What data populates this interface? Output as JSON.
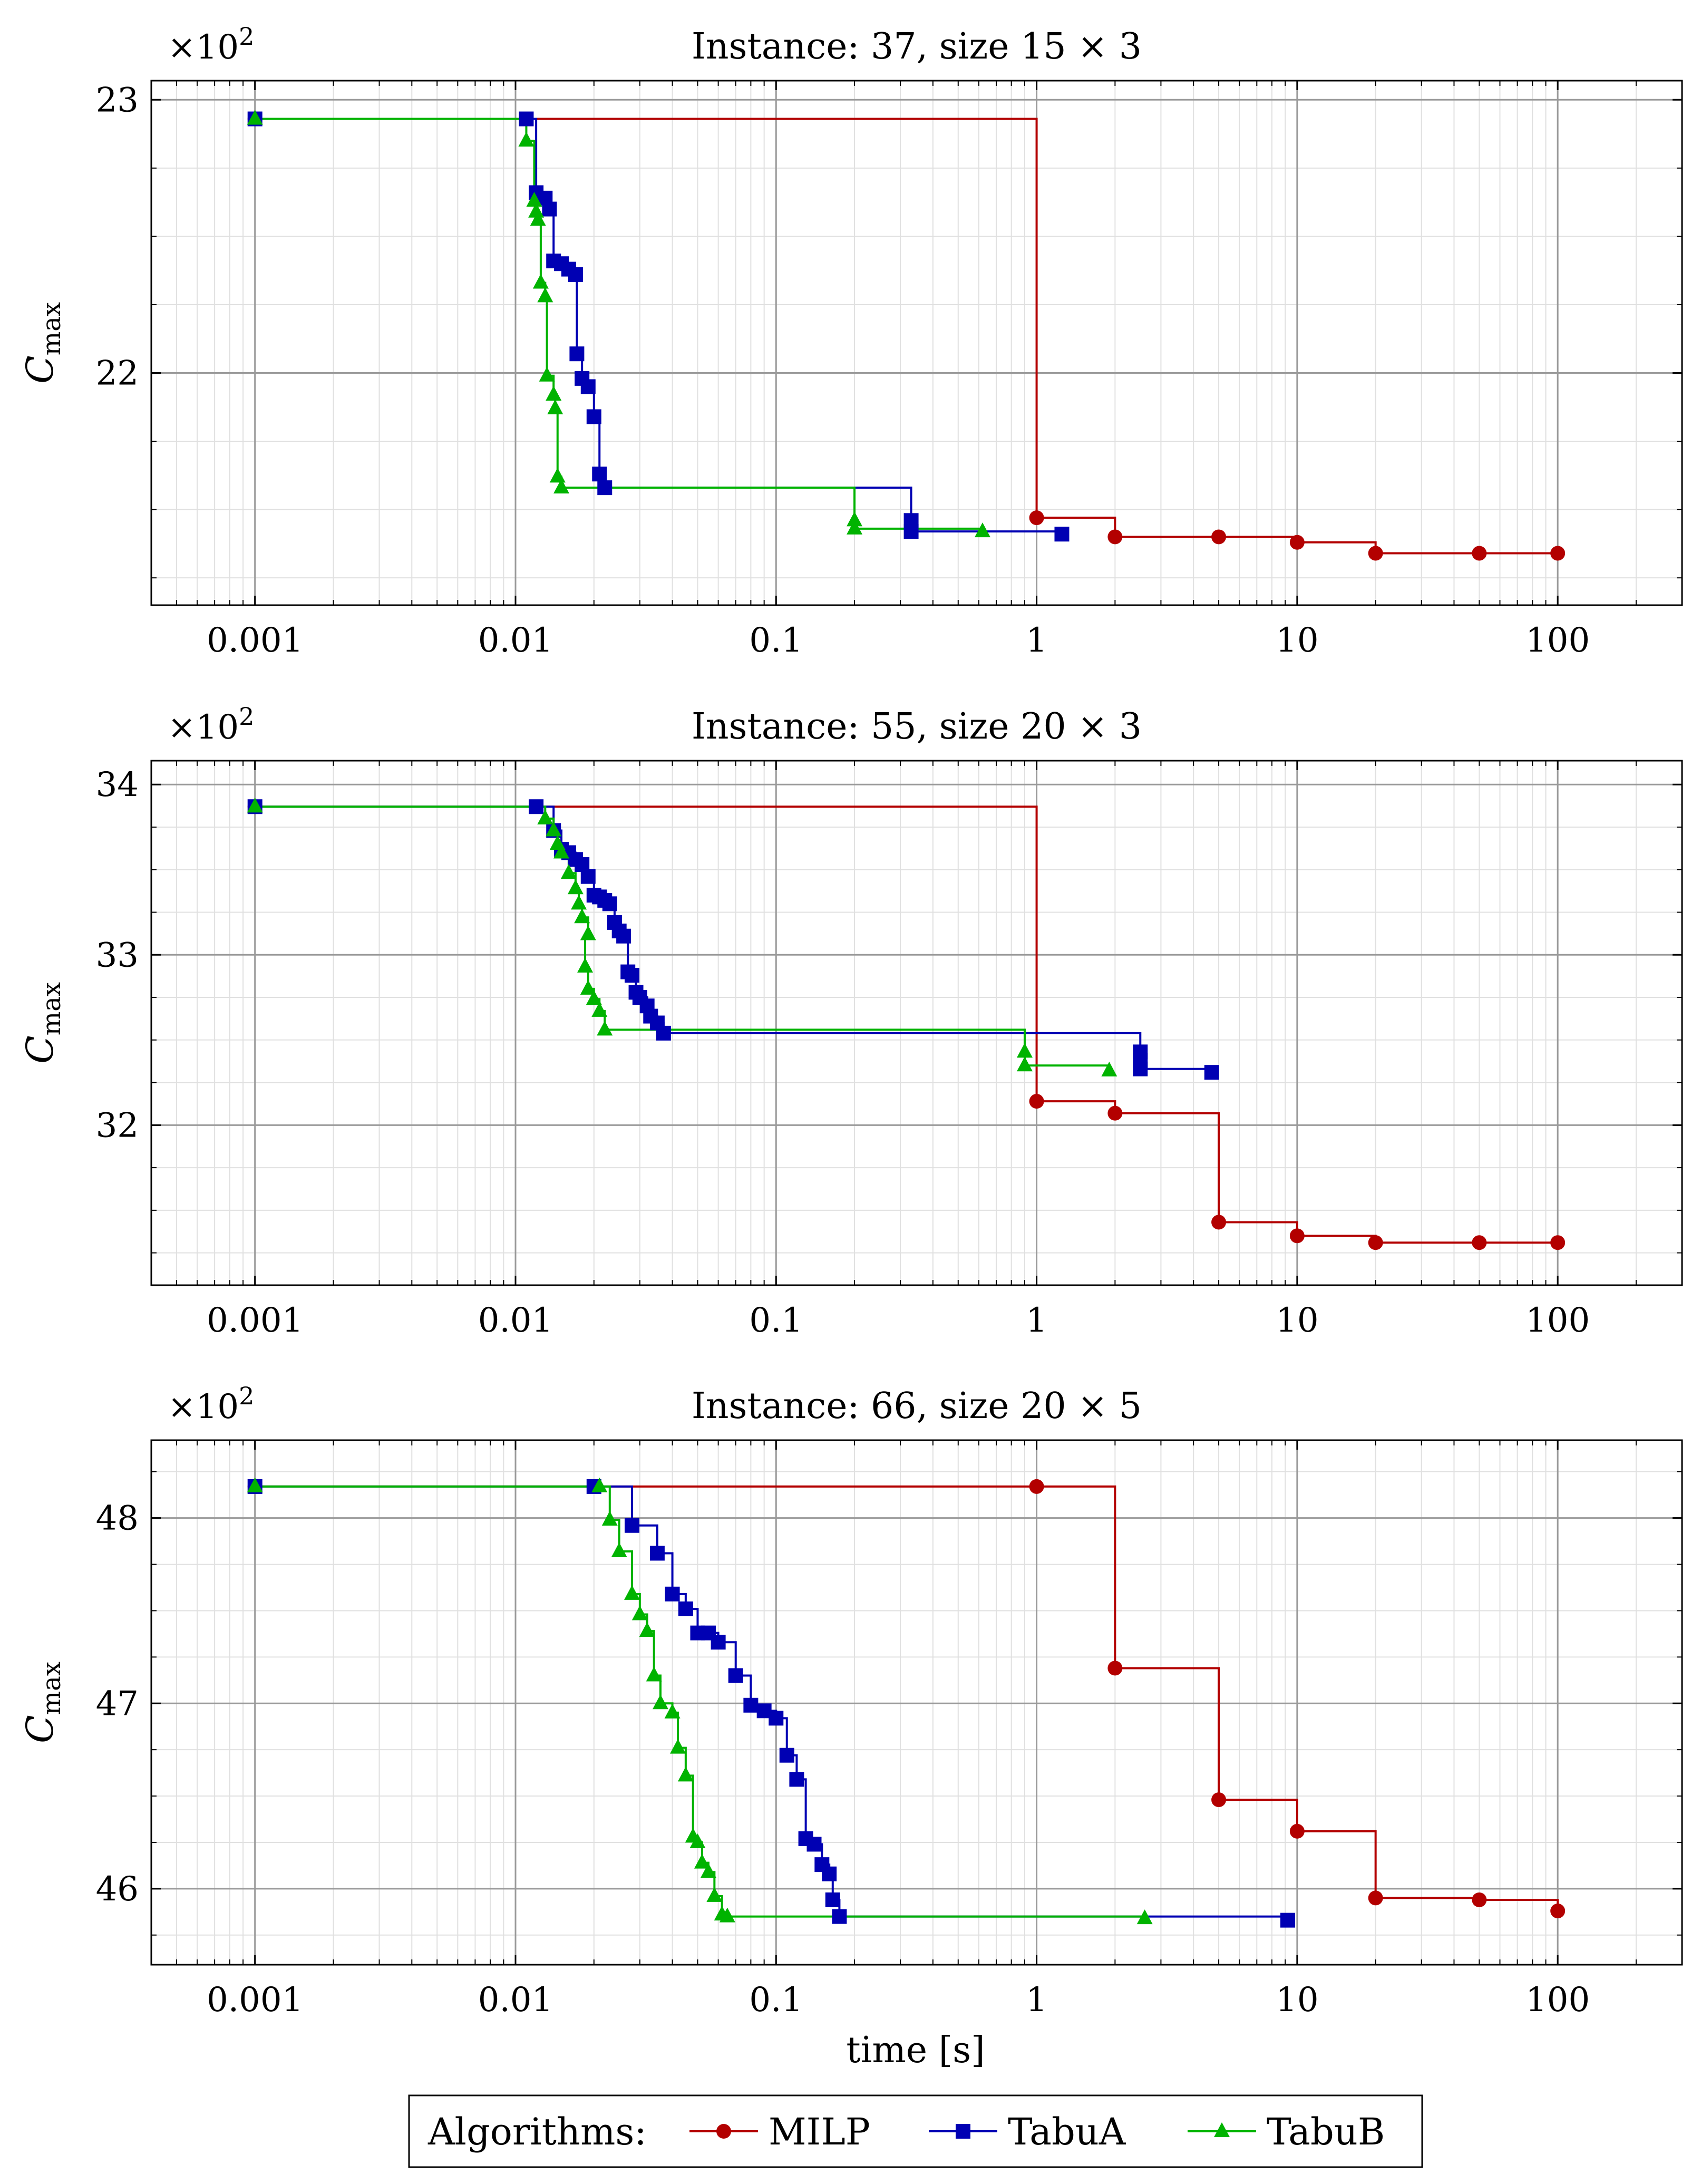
{
  "chart_data": [
    {
      "type": "line",
      "step": true,
      "title": "Instance: 37, size 15 × 3",
      "ylabel_main": "C",
      "ylabel_sub": "max",
      "y_scale_label": "×10",
      "y_scale_exp": "2",
      "xlabel": "",
      "x_scale": "log",
      "xlim": [
        0.0004,
        300
      ],
      "ylim": [
        21.15,
        23.07
      ],
      "x_ticks": [
        0.001,
        0.01,
        0.1,
        1,
        10,
        100
      ],
      "x_tick_labels": [
        "0.001",
        "0.01",
        "0.1",
        "1",
        "10",
        "100"
      ],
      "y_ticks": [
        22,
        23
      ],
      "y_tick_labels": [
        "22",
        "23"
      ],
      "y_minor_ticks": [
        21.25,
        21.5,
        21.75,
        22.25,
        22.5,
        22.75
      ],
      "series": [
        {
          "name": "MILP",
          "color": "#b30000",
          "marker": "circle",
          "points": [
            [
              0.001,
              22.93
            ],
            [
              1,
              21.47
            ],
            [
              2,
              21.4
            ],
            [
              5,
              21.4
            ],
            [
              10,
              21.38
            ],
            [
              20,
              21.34
            ],
            [
              50,
              21.34
            ],
            [
              100,
              21.34
            ]
          ]
        },
        {
          "name": "TabuA",
          "color": "#0000b3",
          "marker": "square",
          "points": [
            [
              0.001,
              22.93
            ],
            [
              0.011,
              22.93
            ],
            [
              0.012,
              22.66
            ],
            [
              0.013,
              22.64
            ],
            [
              0.0135,
              22.6
            ],
            [
              0.014,
              22.41
            ],
            [
              0.015,
              22.4
            ],
            [
              0.016,
              22.38
            ],
            [
              0.017,
              22.36
            ],
            [
              0.0172,
              22.07
            ],
            [
              0.018,
              21.98
            ],
            [
              0.019,
              21.95
            ],
            [
              0.02,
              21.84
            ],
            [
              0.021,
              21.63
            ],
            [
              0.022,
              21.58
            ],
            [
              0.33,
              21.46
            ],
            [
              0.33,
              21.42
            ],
            [
              1.25,
              21.41
            ]
          ]
        },
        {
          "name": "TabuB",
          "color": "#00b300",
          "marker": "triangle",
          "points": [
            [
              0.001,
              22.93
            ],
            [
              0.011,
              22.85
            ],
            [
              0.0118,
              22.63
            ],
            [
              0.012,
              22.59
            ],
            [
              0.0122,
              22.56
            ],
            [
              0.0125,
              22.33
            ],
            [
              0.013,
              22.28
            ],
            [
              0.0132,
              21.99
            ],
            [
              0.014,
              21.92
            ],
            [
              0.0142,
              21.87
            ],
            [
              0.0145,
              21.62
            ],
            [
              0.015,
              21.58
            ],
            [
              0.2,
              21.46
            ],
            [
              0.2,
              21.43
            ],
            [
              0.62,
              21.42
            ]
          ]
        }
      ]
    },
    {
      "type": "line",
      "step": true,
      "title": "Instance: 55, size 20 × 3",
      "ylabel_main": "C",
      "ylabel_sub": "max",
      "y_scale_label": "×10",
      "y_scale_exp": "2",
      "xlabel": "",
      "x_scale": "log",
      "xlim": [
        0.0004,
        300
      ],
      "ylim": [
        31.06,
        34.14
      ],
      "x_ticks": [
        0.001,
        0.01,
        0.1,
        1,
        10,
        100
      ],
      "x_tick_labels": [
        "0.001",
        "0.01",
        "0.1",
        "1",
        "10",
        "100"
      ],
      "y_ticks": [
        32,
        33,
        34
      ],
      "y_tick_labels": [
        "32",
        "33",
        "34"
      ],
      "y_minor_ticks": [
        31.25,
        31.5,
        31.75,
        32.25,
        32.5,
        32.75,
        33.25,
        33.5,
        33.75
      ],
      "series": [
        {
          "name": "MILP",
          "color": "#b30000",
          "marker": "circle",
          "points": [
            [
              0.001,
              33.87
            ],
            [
              1,
              32.14
            ],
            [
              2,
              32.07
            ],
            [
              5,
              31.43
            ],
            [
              10,
              31.35
            ],
            [
              20,
              31.31
            ],
            [
              50,
              31.31
            ],
            [
              100,
              31.31
            ]
          ]
        },
        {
          "name": "TabuA",
          "color": "#0000b3",
          "marker": "square",
          "points": [
            [
              0.001,
              33.87
            ],
            [
              0.012,
              33.87
            ],
            [
              0.014,
              33.73
            ],
            [
              0.015,
              33.62
            ],
            [
              0.016,
              33.6
            ],
            [
              0.017,
              33.56
            ],
            [
              0.018,
              33.53
            ],
            [
              0.019,
              33.46
            ],
            [
              0.02,
              33.35
            ],
            [
              0.021,
              33.34
            ],
            [
              0.022,
              33.32
            ],
            [
              0.023,
              33.3
            ],
            [
              0.024,
              33.19
            ],
            [
              0.025,
              33.14
            ],
            [
              0.026,
              33.11
            ],
            [
              0.027,
              32.9
            ],
            [
              0.028,
              32.88
            ],
            [
              0.029,
              32.78
            ],
            [
              0.03,
              32.75
            ],
            [
              0.032,
              32.7
            ],
            [
              0.033,
              32.64
            ],
            [
              0.035,
              32.6
            ],
            [
              0.037,
              32.54
            ],
            [
              2.5,
              32.43
            ],
            [
              2.5,
              32.38
            ],
            [
              2.5,
              32.33
            ],
            [
              4.7,
              32.31
            ]
          ]
        },
        {
          "name": "TabuB",
          "color": "#00b300",
          "marker": "triangle",
          "points": [
            [
              0.001,
              33.87
            ],
            [
              0.013,
              33.8
            ],
            [
              0.014,
              33.73
            ],
            [
              0.0145,
              33.65
            ],
            [
              0.015,
              33.6
            ],
            [
              0.016,
              33.48
            ],
            [
              0.017,
              33.39
            ],
            [
              0.0175,
              33.3
            ],
            [
              0.018,
              33.22
            ],
            [
              0.019,
              33.12
            ],
            [
              0.0185,
              32.93
            ],
            [
              0.019,
              32.8
            ],
            [
              0.02,
              32.74
            ],
            [
              0.021,
              32.67
            ],
            [
              0.022,
              32.56
            ],
            [
              0.9,
              32.43
            ],
            [
              0.9,
              32.35
            ],
            [
              1.9,
              32.32
            ]
          ]
        }
      ]
    },
    {
      "type": "line",
      "step": true,
      "title": "Instance: 66, size 20 × 5",
      "ylabel_main": "C",
      "ylabel_sub": "max",
      "y_scale_label": "×10",
      "y_scale_exp": "2",
      "xlabel": "time [s]",
      "x_scale": "log",
      "xlim": [
        0.0004,
        300
      ],
      "ylim": [
        45.59,
        48.42
      ],
      "x_ticks": [
        0.001,
        0.01,
        0.1,
        1,
        10,
        100
      ],
      "x_tick_labels": [
        "0.001",
        "0.01",
        "0.1",
        "1",
        "10",
        "100"
      ],
      "y_ticks": [
        46,
        47,
        48
      ],
      "y_tick_labels": [
        "46",
        "47",
        "48"
      ],
      "y_minor_ticks": [
        45.75,
        46.25,
        46.5,
        46.75,
        47.25,
        47.5,
        47.75,
        48.25
      ],
      "series": [
        {
          "name": "MILP",
          "color": "#b30000",
          "marker": "circle",
          "points": [
            [
              0.001,
              48.17
            ],
            [
              1,
              48.17
            ],
            [
              2,
              47.19
            ],
            [
              5,
              46.48
            ],
            [
              10,
              46.31
            ],
            [
              20,
              45.95
            ],
            [
              50,
              45.94
            ],
            [
              100,
              45.88
            ]
          ]
        },
        {
          "name": "TabuA",
          "color": "#0000b3",
          "marker": "square",
          "points": [
            [
              0.001,
              48.17
            ],
            [
              0.02,
              48.17
            ],
            [
              0.028,
              47.96
            ],
            [
              0.035,
              47.81
            ],
            [
              0.04,
              47.59
            ],
            [
              0.045,
              47.51
            ],
            [
              0.05,
              47.38
            ],
            [
              0.055,
              47.38
            ],
            [
              0.06,
              47.33
            ],
            [
              0.07,
              47.15
            ],
            [
              0.08,
              46.99
            ],
            [
              0.09,
              46.96
            ],
            [
              0.1,
              46.92
            ],
            [
              0.11,
              46.72
            ],
            [
              0.12,
              46.59
            ],
            [
              0.13,
              46.27
            ],
            [
              0.14,
              46.24
            ],
            [
              0.15,
              46.13
            ],
            [
              0.16,
              46.08
            ],
            [
              0.165,
              45.94
            ],
            [
              0.175,
              45.85
            ],
            [
              9.2,
              45.83
            ]
          ]
        },
        {
          "name": "TabuB",
          "color": "#00b300",
          "marker": "triangle",
          "points": [
            [
              0.001,
              48.17
            ],
            [
              0.021,
              48.17
            ],
            [
              0.023,
              47.99
            ],
            [
              0.025,
              47.82
            ],
            [
              0.028,
              47.59
            ],
            [
              0.03,
              47.48
            ],
            [
              0.032,
              47.39
            ],
            [
              0.034,
              47.15
            ],
            [
              0.036,
              47.0
            ],
            [
              0.04,
              46.95
            ],
            [
              0.042,
              46.76
            ],
            [
              0.045,
              46.61
            ],
            [
              0.048,
              46.28
            ],
            [
              0.05,
              46.25
            ],
            [
              0.052,
              46.14
            ],
            [
              0.055,
              46.09
            ],
            [
              0.058,
              45.96
            ],
            [
              0.062,
              45.86
            ],
            [
              0.065,
              45.85
            ],
            [
              2.6,
              45.84
            ]
          ]
        }
      ]
    }
  ],
  "legend": {
    "title": "Algorithms:",
    "items": [
      {
        "label": "MILP",
        "color": "#b30000",
        "marker": "circle"
      },
      {
        "label": "TabuA",
        "color": "#0000b3",
        "marker": "square"
      },
      {
        "label": "TabuB",
        "color": "#00b300",
        "marker": "triangle"
      }
    ]
  }
}
